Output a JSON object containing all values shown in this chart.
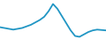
{
  "x": [
    0,
    1,
    2,
    3,
    4,
    5,
    6,
    7,
    8,
    9,
    10,
    11,
    12,
    13,
    14,
    15,
    16,
    17,
    18,
    19,
    20,
    21,
    22,
    23,
    24
  ],
  "y": [
    32,
    30,
    28,
    26,
    28,
    30,
    34,
    38,
    44,
    50,
    58,
    72,
    90,
    78,
    60,
    42,
    24,
    10,
    8,
    14,
    20,
    24,
    26,
    25,
    24
  ],
  "line_color": "#2196c4",
  "linewidth": 1.3,
  "background_color": "#ffffff",
  "ylim": [
    0,
    100
  ],
  "xlim": [
    0,
    24
  ]
}
